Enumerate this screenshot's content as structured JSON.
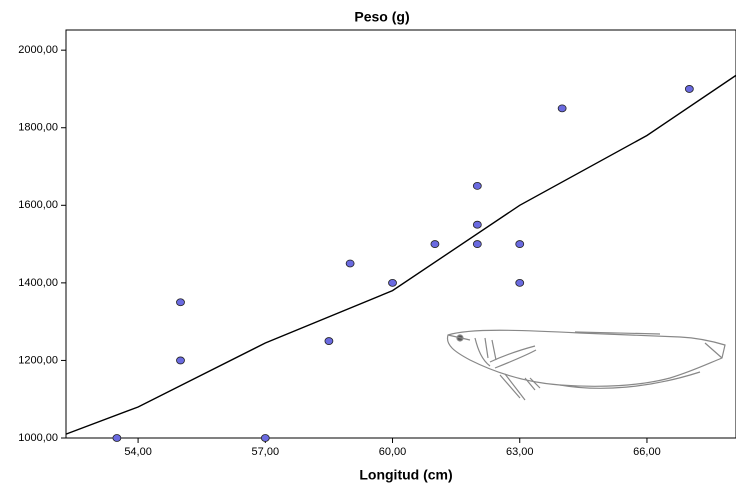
{
  "chart_data": {
    "type": "scatter",
    "title": "Peso (g)",
    "x_label": "Longitud (cm)",
    "x": [
      53.5,
      55,
      55,
      57,
      58.5,
      59,
      60,
      61,
      62,
      62,
      62,
      63,
      63,
      64,
      67
    ],
    "y": [
      1000,
      1350,
      1200,
      1000,
      1250,
      1450,
      1400,
      1500,
      1650,
      1550,
      1500,
      1500,
      1400,
      1850,
      1900
    ],
    "color": "#6a6ae0",
    "fit": {
      "x": [
        52.3,
        54,
        57,
        60,
        63,
        66,
        68.1
      ],
      "y": [
        1010,
        1080,
        1245,
        1380,
        1600,
        1780,
        1935
      ],
      "color": "#000000"
    },
    "xlim": [
      52.3,
      68.1
    ],
    "ylim": [
      1000,
      2052
    ],
    "xticks": [
      {
        "value": 54,
        "label": "54,00"
      },
      {
        "value": 57,
        "label": "57,00"
      },
      {
        "value": 60,
        "label": "60,00"
      },
      {
        "value": 63,
        "label": "63,00"
      },
      {
        "value": 66,
        "label": "66,00"
      }
    ],
    "yticks": [
      {
        "value": 1000,
        "label": "1000,00"
      },
      {
        "value": 1200,
        "label": "1200,00"
      },
      {
        "value": 1400,
        "label": "1400,00"
      },
      {
        "value": 1600,
        "label": "1600,00"
      },
      {
        "value": 1800,
        "label": "1800,00"
      },
      {
        "value": 2000,
        "label": "2000,00"
      }
    ]
  }
}
